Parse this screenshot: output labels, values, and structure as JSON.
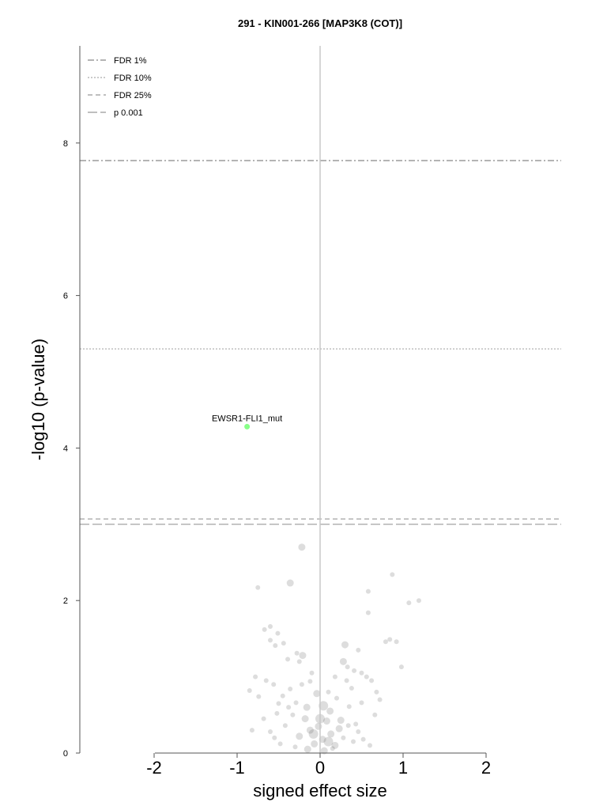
{
  "chart_data": {
    "type": "scatter",
    "title": "291 - KIN001-266 [MAP3K8 (COT)]",
    "xlabel": "signed effect size",
    "ylabel": "-log10 (p-value)",
    "xlim": [
      -2.9,
      2.9
    ],
    "ylim": [
      0,
      9.3
    ],
    "x_ticks": [
      -2,
      -1,
      0,
      1,
      2
    ],
    "y_ticks": [
      0,
      2,
      4,
      6,
      8
    ],
    "grid": false,
    "legend_position": "top-left",
    "threshold_lines": [
      {
        "name": "FDR 1%",
        "y": 7.77,
        "style": "dashdot",
        "color": "#888888"
      },
      {
        "name": "FDR 10%",
        "y": 5.3,
        "style": "dotted",
        "color": "#aaaaaa"
      },
      {
        "name": "FDR 25%",
        "y": 3.07,
        "style": "dashed",
        "color": "#999999"
      },
      {
        "name": "p 0.001",
        "y": 3.0,
        "style": "longdash",
        "color": "#999999"
      }
    ],
    "highlighted_points": [
      {
        "x": -0.88,
        "y": 4.28,
        "label": "EWSR1-FLI1_mut",
        "color": "#88ff88"
      }
    ],
    "series": [
      {
        "color": "#666666",
        "points": [
          [
            -0.22,
            2.7,
            4.5
          ],
          [
            -0.36,
            2.23,
            4.5
          ],
          [
            -0.75,
            2.17,
            3
          ],
          [
            0.58,
            2.12,
            3
          ],
          [
            0.87,
            2.34,
            3
          ],
          [
            1.07,
            1.97,
            3
          ],
          [
            1.19,
            2.0,
            3
          ],
          [
            0.58,
            1.84,
            3
          ],
          [
            -0.67,
            1.62,
            3
          ],
          [
            -0.51,
            1.57,
            3
          ],
          [
            -0.6,
            1.66,
            3
          ],
          [
            -0.6,
            1.48,
            3
          ],
          [
            -0.44,
            1.44,
            3
          ],
          [
            -0.54,
            1.41,
            3
          ],
          [
            -0.28,
            1.31,
            3
          ],
          [
            -0.21,
            1.28,
            4.5
          ],
          [
            -0.39,
            1.23,
            3
          ],
          [
            -0.25,
            1.2,
            3
          ],
          [
            0.3,
            1.42,
            4.5
          ],
          [
            0.46,
            1.35,
            3
          ],
          [
            0.79,
            1.46,
            3
          ],
          [
            0.84,
            1.49,
            3
          ],
          [
            0.92,
            1.46,
            3
          ],
          [
            0.28,
            1.2,
            4.5
          ],
          [
            0.33,
            1.13,
            3
          ],
          [
            0.41,
            1.08,
            3
          ],
          [
            0.98,
            1.13,
            3
          ],
          [
            0.5,
            1.05,
            3
          ],
          [
            0.56,
            1.0,
            3
          ],
          [
            0.68,
            0.8,
            3
          ],
          [
            0.62,
            0.95,
            3
          ],
          [
            -0.12,
            0.94,
            3
          ],
          [
            -0.78,
            1.0,
            3
          ],
          [
            -0.65,
            0.95,
            3
          ],
          [
            -0.85,
            0.82,
            3
          ],
          [
            -0.74,
            0.74,
            3
          ],
          [
            -0.56,
            0.9,
            3
          ],
          [
            -0.45,
            0.75,
            3
          ],
          [
            -0.36,
            0.84,
            3
          ],
          [
            -0.29,
            0.66,
            3
          ],
          [
            0.04,
            0.62,
            6
          ],
          [
            -0.04,
            0.78,
            4.5
          ],
          [
            0.12,
            0.55,
            4.5
          ],
          [
            0.2,
            0.72,
            3
          ],
          [
            0.25,
            0.43,
            4.5
          ],
          [
            0.35,
            0.61,
            3
          ],
          [
            0.43,
            0.38,
            3
          ],
          [
            0.5,
            0.66,
            3
          ],
          [
            0.66,
            0.5,
            3
          ],
          [
            -0.82,
            0.3,
            3
          ],
          [
            -0.68,
            0.45,
            3
          ],
          [
            -0.6,
            0.28,
            3
          ],
          [
            -0.52,
            0.52,
            3
          ],
          [
            -0.42,
            0.36,
            3
          ],
          [
            -0.33,
            0.5,
            3
          ],
          [
            -0.25,
            0.22,
            4.5
          ],
          [
            -0.18,
            0.45,
            4.5
          ],
          [
            -0.12,
            0.3,
            4.5
          ],
          [
            -0.07,
            0.12,
            4.5
          ],
          [
            -0.02,
            0.35,
            4.5
          ],
          [
            0.03,
            0.18,
            4.5
          ],
          [
            0.08,
            0.42,
            4.5
          ],
          [
            0.13,
            0.25,
            4.5
          ],
          [
            0.18,
            0.1,
            4.5
          ],
          [
            0.23,
            0.32,
            4.5
          ],
          [
            0.28,
            0.2,
            3
          ],
          [
            0.34,
            0.36,
            3
          ],
          [
            0.4,
            0.15,
            3
          ],
          [
            0.46,
            0.28,
            3
          ],
          [
            -0.3,
            0.08,
            3
          ],
          [
            -0.15,
            0.05,
            4.5
          ],
          [
            0.05,
            0.03,
            4.5
          ],
          [
            0.15,
            0.06,
            3
          ],
          [
            -0.48,
            0.12,
            3
          ],
          [
            -0.55,
            0.2,
            3
          ],
          [
            0.52,
            0.18,
            3
          ],
          [
            0.6,
            0.1,
            3
          ],
          [
            -0.38,
            0.6,
            3
          ],
          [
            -0.22,
            0.9,
            3
          ],
          [
            0.1,
            0.8,
            3
          ],
          [
            0.18,
            1.0,
            3
          ],
          [
            0.32,
            0.95,
            3
          ],
          [
            -0.1,
            1.05,
            3
          ],
          [
            -0.5,
            0.65,
            3
          ],
          [
            0.72,
            0.7,
            3
          ],
          [
            0.38,
            0.85,
            3
          ],
          [
            -0.16,
            0.6,
            4.5
          ],
          [
            0.0,
            0.45,
            6
          ],
          [
            -0.08,
            0.25,
            6
          ],
          [
            0.1,
            0.15,
            6
          ]
        ]
      }
    ]
  }
}
